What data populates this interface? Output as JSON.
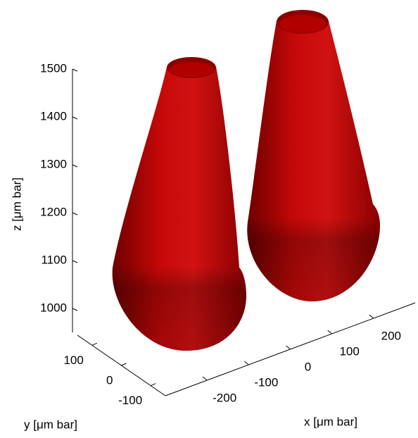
{
  "chart_data": {
    "type": "surface3d",
    "zlabel": "z [μm bar]",
    "ylabel": "y [μm bar]",
    "xlabel": "x [μm bar]",
    "zlim": [
      950,
      1500
    ],
    "zticks": [
      1000,
      1100,
      1200,
      1300,
      1400,
      1500
    ],
    "ylim": [
      -150,
      150
    ],
    "yticks": [
      -100,
      0,
      100
    ],
    "xlim": [
      -300,
      300
    ],
    "xticks": [
      -200,
      -100,
      0,
      100,
      200
    ],
    "color": "#c00808"
  }
}
